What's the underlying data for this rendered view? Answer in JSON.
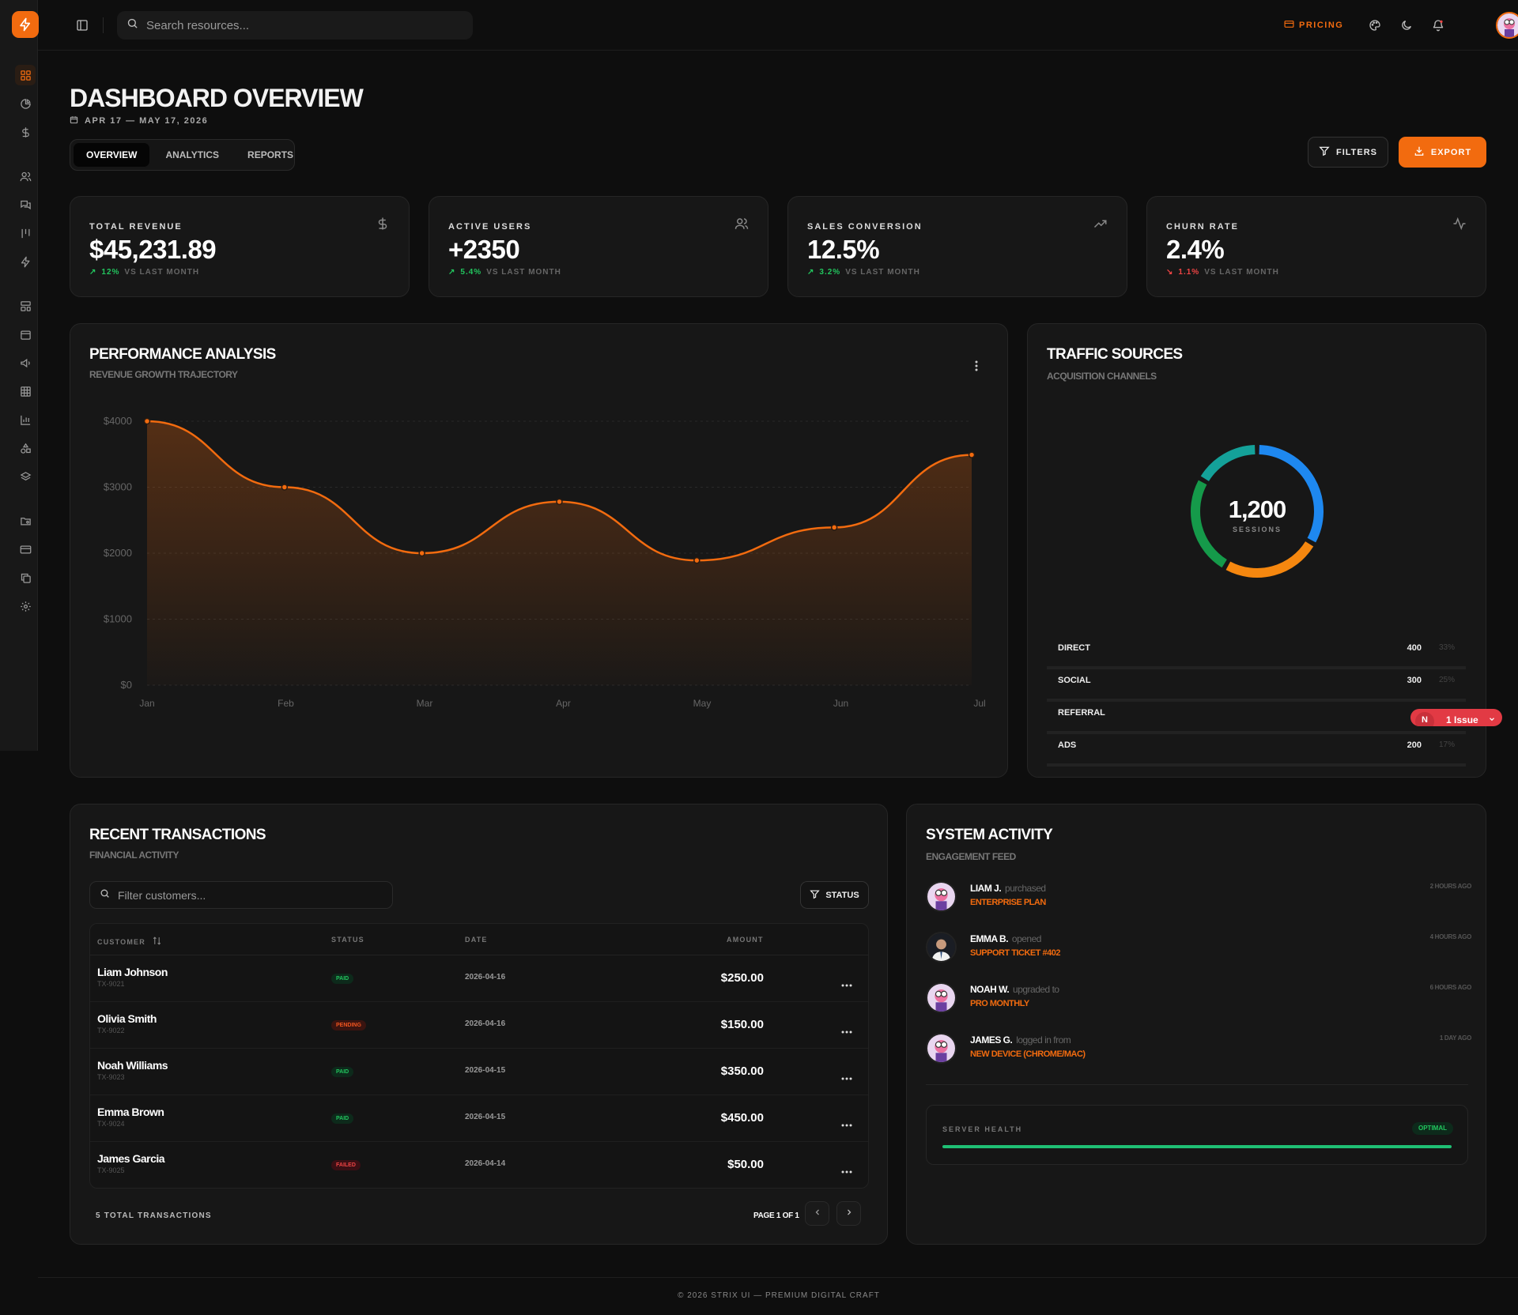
{
  "topbar": {
    "search_placeholder": "Search resources...",
    "pricing_label": "PRICING"
  },
  "header": {
    "title": "DASHBOARD OVERVIEW",
    "date_range": "APR 17 — MAY 17, 2026",
    "tabs": [
      "OVERVIEW",
      "ANALYTICS",
      "REPORTS"
    ],
    "active_tab": "OVERVIEW",
    "filters_label": "FILTERS",
    "export_label": "EXPORT"
  },
  "colors": {
    "accent": "#f26b0f",
    "positive": "#22c55e",
    "negative": "#ef4444"
  },
  "stats": [
    {
      "label": "TOTAL REVENUE",
      "value": "$45,231.89",
      "delta": "12%",
      "direction": "up",
      "note": "VS LAST MONTH",
      "icon": "dollar-icon"
    },
    {
      "label": "ACTIVE USERS",
      "value": "+2350",
      "delta": "5.4%",
      "direction": "up",
      "note": "VS LAST MONTH",
      "icon": "users-icon"
    },
    {
      "label": "SALES CONVERSION",
      "value": "12.5%",
      "delta": "3.2%",
      "direction": "up",
      "note": "VS LAST MONTH",
      "icon": "trending-up-icon"
    },
    {
      "label": "CHURN RATE",
      "value": "2.4%",
      "delta": "1.1%",
      "direction": "down",
      "note": "VS LAST MONTH",
      "icon": "activity-icon"
    }
  ],
  "performance": {
    "title": "PERFORMANCE ANALYSIS",
    "subtitle": "REVENUE GROWTH TRAJECTORY"
  },
  "chart_data": [
    {
      "type": "area",
      "categories": [
        "Jan",
        "Feb",
        "Mar",
        "Apr",
        "May",
        "Jun",
        "Jul"
      ],
      "values": [
        4000,
        3000,
        2000,
        2780,
        1890,
        2390,
        3490
      ],
      "ylim": [
        0,
        4000
      ],
      "yticks": [
        "$0",
        "$1000",
        "$2000",
        "$3000",
        "$4000"
      ],
      "grid": true,
      "color": "#f26b0f"
    },
    {
      "type": "pie",
      "center_value": "1,200",
      "center_label": "SESSIONS",
      "categories": [
        "DIRECT",
        "SOCIAL",
        "REFERRAL",
        "ADS"
      ],
      "values": [
        400,
        300,
        300,
        200
      ],
      "percents": [
        "33%",
        "25%",
        "25%",
        "17%"
      ],
      "colors": [
        "#1e88f0",
        "#f5870f",
        "#159a4a",
        "#14a199"
      ]
    }
  ],
  "traffic": {
    "title": "TRAFFIC SOURCES",
    "subtitle": "ACQUISITION CHANNELS",
    "rows": [
      {
        "name": "DIRECT",
        "value": "400",
        "pct": "33%"
      },
      {
        "name": "SOCIAL",
        "value": "300",
        "pct": "25%"
      },
      {
        "name": "REFERRAL",
        "value": "",
        "pct": ""
      },
      {
        "name": "ADS",
        "value": "200",
        "pct": "17%"
      }
    ]
  },
  "issue_badge": {
    "initial": "N",
    "label": "1 Issue"
  },
  "transactions": {
    "title": "RECENT TRANSACTIONS",
    "subtitle": "FINANCIAL ACTIVITY",
    "filter_placeholder": "Filter customers...",
    "status_label": "STATUS",
    "columns": [
      "CUSTOMER",
      "STATUS",
      "DATE",
      "AMOUNT"
    ],
    "rows": [
      {
        "name": "Liam Johnson",
        "id": "TX-9021",
        "status": "PAID",
        "kind": "paid",
        "date": "2026-04-16",
        "amount": "$250.00"
      },
      {
        "name": "Olivia Smith",
        "id": "TX-9022",
        "status": "PENDING",
        "kind": "pending",
        "date": "2026-04-16",
        "amount": "$150.00"
      },
      {
        "name": "Noah Williams",
        "id": "TX-9023",
        "status": "PAID",
        "kind": "paid",
        "date": "2026-04-15",
        "amount": "$350.00"
      },
      {
        "name": "Emma Brown",
        "id": "TX-9024",
        "status": "PAID",
        "kind": "paid",
        "date": "2026-04-15",
        "amount": "$450.00"
      },
      {
        "name": "James Garcia",
        "id": "TX-9025",
        "status": "FAILED",
        "kind": "failed",
        "date": "2026-04-14",
        "amount": "$50.00"
      }
    ],
    "total_label": "5 TOTAL TRANSACTIONS",
    "page_label": "PAGE 1 OF 1"
  },
  "activity": {
    "title": "SYSTEM ACTIVITY",
    "subtitle": "ENGAGEMENT FEED",
    "items": [
      {
        "who": "LIAM J.",
        "verb": "purchased",
        "what": "ENTERPRISE PLAN",
        "time": "2 HOURS AGO",
        "avatar": "cartoon"
      },
      {
        "who": "EMMA B.",
        "verb": "opened",
        "what": "SUPPORT TICKET #402",
        "time": "4 HOURS AGO",
        "avatar": "photo"
      },
      {
        "who": "NOAH W.",
        "verb": "upgraded to",
        "what": "PRO MONTHLY",
        "time": "6 HOURS AGO",
        "avatar": "cartoon"
      },
      {
        "who": "JAMES G.",
        "verb": "logged in from",
        "what": "NEW DEVICE (CHROME/MAC)",
        "time": "1 DAY AGO",
        "avatar": "cartoon"
      }
    ],
    "health_label": "SERVER HEALTH",
    "health_status": "OPTIMAL",
    "health_level": 1.0
  },
  "footer": "© 2026 STRIX UI — PREMIUM DIGITAL CRAFT"
}
